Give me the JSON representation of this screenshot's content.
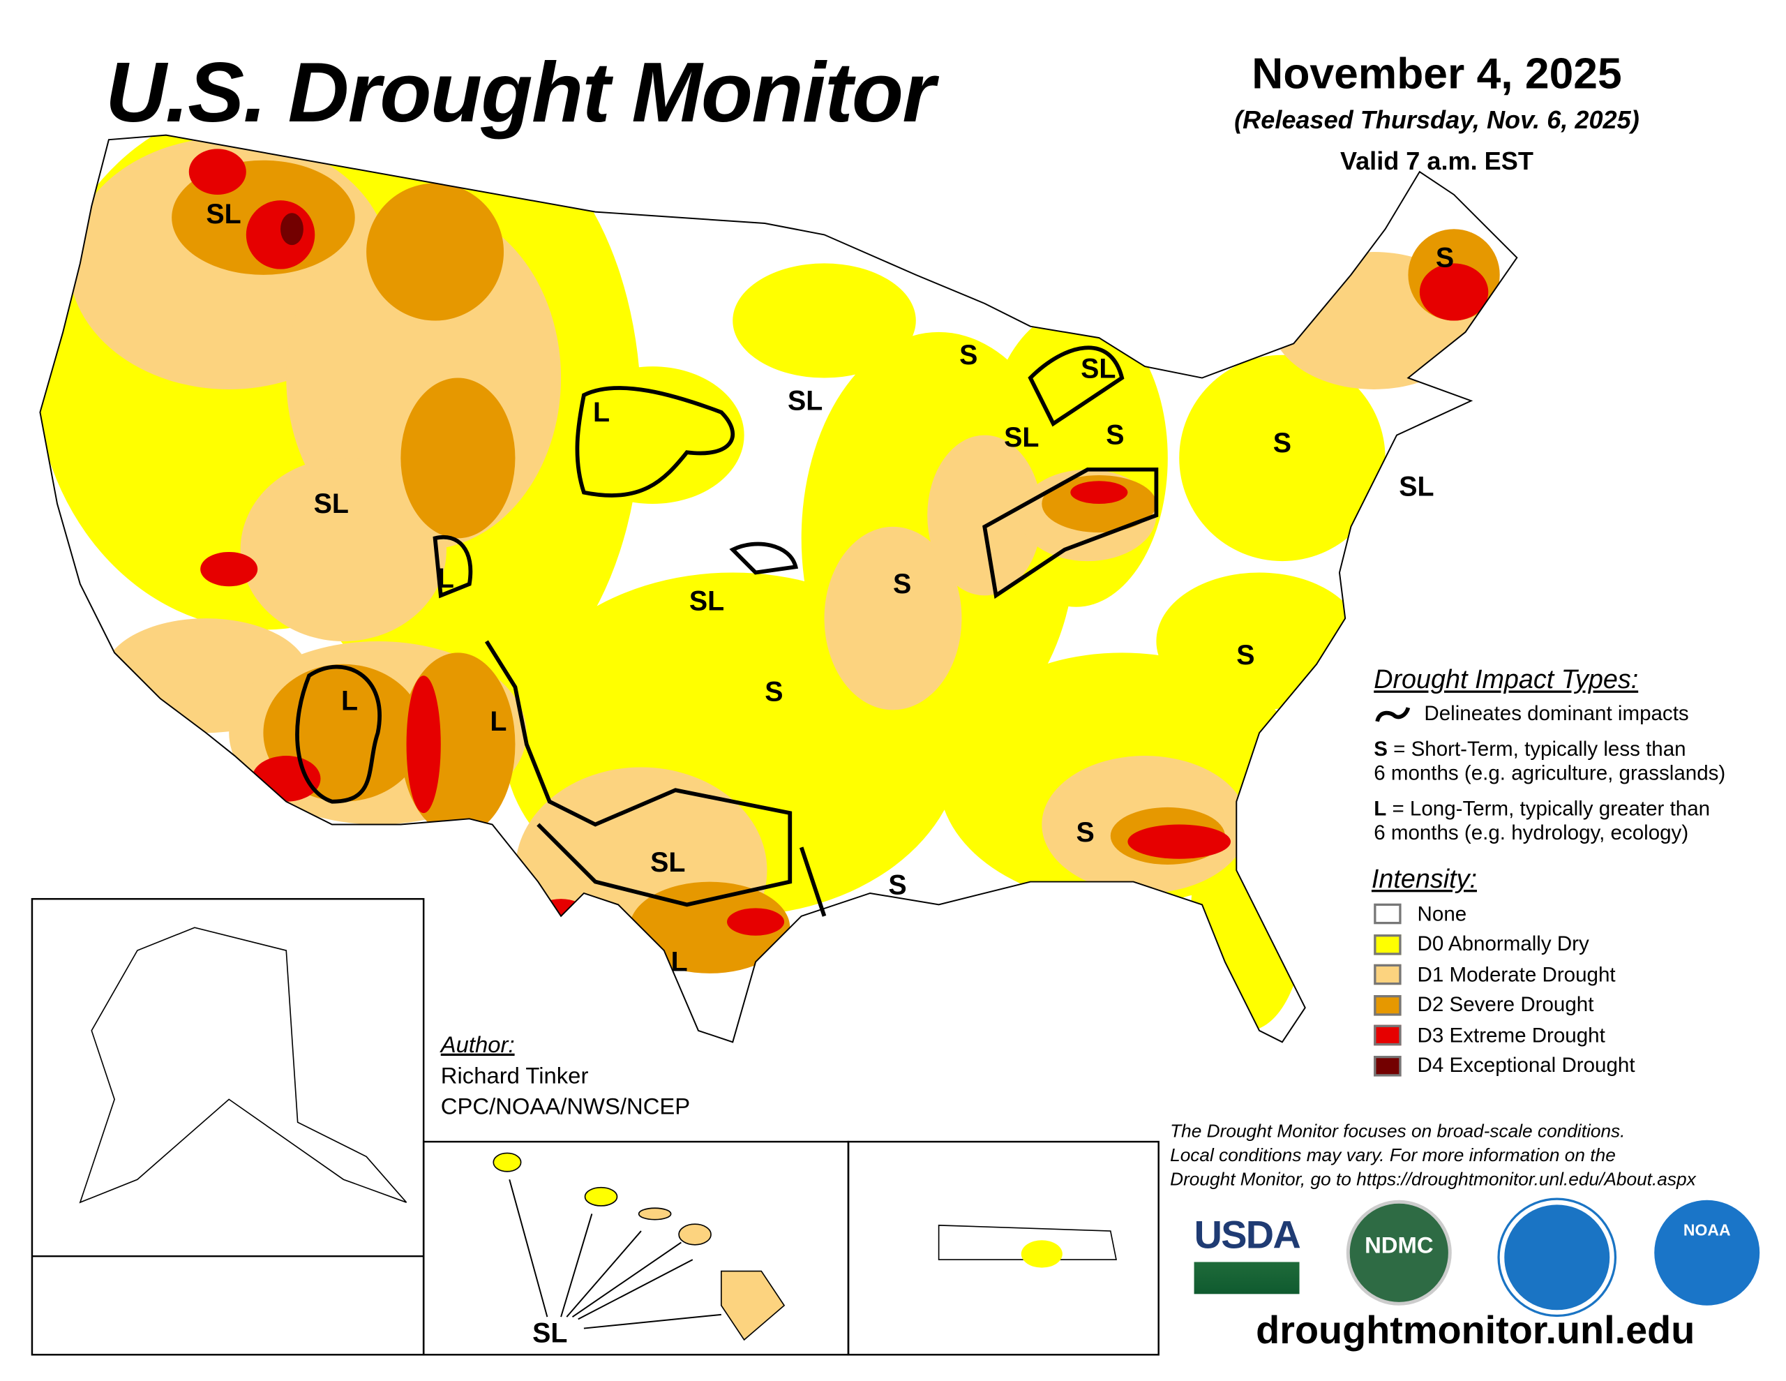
{
  "header": {
    "title": "U.S. Drought Monitor",
    "date": "November 4, 2025",
    "released": "(Released Thursday, Nov. 6, 2025)",
    "valid": "Valid 7 a.m. EST"
  },
  "legend": {
    "impact_heading": "Drought Impact Types:",
    "delineates": "Delineates dominant impacts",
    "s_key": "S",
    "s_text": " = Short-Term, typically less than",
    "s_text2": "6 months (e.g. agriculture, grasslands)",
    "l_key": "L",
    "l_text": " = Long-Term, typically greater than",
    "l_text2": "6 months (e.g. hydrology, ecology)",
    "intensity_heading": "Intensity:",
    "categories": [
      {
        "label": "None",
        "color": "#ffffff"
      },
      {
        "label": "D0 Abnormally Dry",
        "color": "#ffff00"
      },
      {
        "label": "D1 Moderate Drought",
        "color": "#fcd37f"
      },
      {
        "label": "D2 Severe Drought",
        "color": "#e69800"
      },
      {
        "label": "D3 Extreme Drought",
        "color": "#e60000"
      },
      {
        "label": "D4 Exceptional Drought",
        "color": "#730000"
      }
    ]
  },
  "map_labels": [
    "SL",
    "S",
    "SL",
    "SL",
    "L",
    "SL",
    "S",
    "S",
    "S",
    "SL",
    "SL",
    "L",
    "S",
    "SL",
    "S",
    "L",
    "L",
    "S",
    "SL",
    "S",
    "S",
    "L"
  ],
  "hawaii_label": "SL",
  "author": {
    "heading": "Author:",
    "name": "Richard Tinker",
    "org": "CPC/NOAA/NWS/NCEP"
  },
  "note": [
    "The Drought Monitor focuses on broad-scale conditions.",
    "Local conditions may vary. For more information on the",
    "Drought Monitor, go to https://droughtmonitor.unl.edu/About.aspx"
  ],
  "logos": {
    "usda": "USDA",
    "ndmc": "NDMC",
    "noaa": "NOAA"
  },
  "url": "droughtmonitor.unl.edu"
}
